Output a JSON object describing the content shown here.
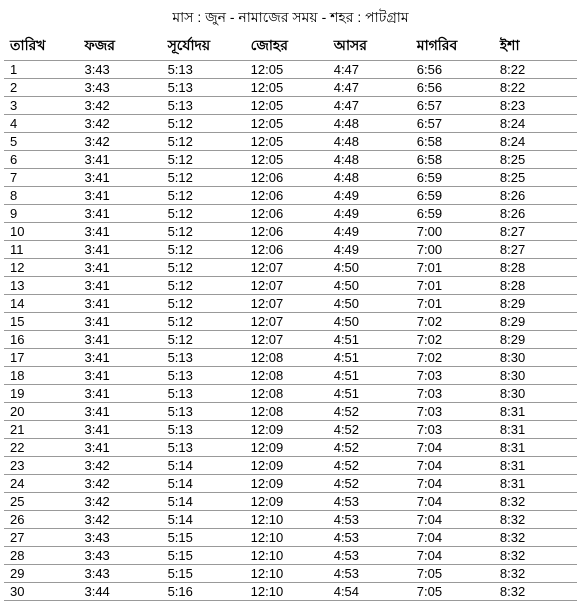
{
  "title": "মাস : জুন - নামাজের সময় - শহর : পাটগ্রাম",
  "headers": {
    "date": "তারিখ",
    "fajr": "ফজর",
    "sunrise": "সূর্যোদয়",
    "dhuhr": "জোহর",
    "asr": "আসর",
    "maghrib": "মাগরিব",
    "isha": "ইশা"
  },
  "table": {
    "columns": [
      "date",
      "fajr",
      "sunrise",
      "dhuhr",
      "asr",
      "maghrib",
      "isha"
    ],
    "rows": [
      [
        "1",
        "3:43",
        "5:13",
        "12:05",
        "4:47",
        "6:56",
        "8:22"
      ],
      [
        "2",
        "3:43",
        "5:13",
        "12:05",
        "4:47",
        "6:56",
        "8:22"
      ],
      [
        "3",
        "3:42",
        "5:13",
        "12:05",
        "4:47",
        "6:57",
        "8:23"
      ],
      [
        "4",
        "3:42",
        "5:12",
        "12:05",
        "4:48",
        "6:57",
        "8:24"
      ],
      [
        "5",
        "3:42",
        "5:12",
        "12:05",
        "4:48",
        "6:58",
        "8:24"
      ],
      [
        "6",
        "3:41",
        "5:12",
        "12:05",
        "4:48",
        "6:58",
        "8:25"
      ],
      [
        "7",
        "3:41",
        "5:12",
        "12:06",
        "4:48",
        "6:59",
        "8:25"
      ],
      [
        "8",
        "3:41",
        "5:12",
        "12:06",
        "4:49",
        "6:59",
        "8:26"
      ],
      [
        "9",
        "3:41",
        "5:12",
        "12:06",
        "4:49",
        "6:59",
        "8:26"
      ],
      [
        "10",
        "3:41",
        "5:12",
        "12:06",
        "4:49",
        "7:00",
        "8:27"
      ],
      [
        "11",
        "3:41",
        "5:12",
        "12:06",
        "4:49",
        "7:00",
        "8:27"
      ],
      [
        "12",
        "3:41",
        "5:12",
        "12:07",
        "4:50",
        "7:01",
        "8:28"
      ],
      [
        "13",
        "3:41",
        "5:12",
        "12:07",
        "4:50",
        "7:01",
        "8:28"
      ],
      [
        "14",
        "3:41",
        "5:12",
        "12:07",
        "4:50",
        "7:01",
        "8:29"
      ],
      [
        "15",
        "3:41",
        "5:12",
        "12:07",
        "4:50",
        "7:02",
        "8:29"
      ],
      [
        "16",
        "3:41",
        "5:12",
        "12:07",
        "4:51",
        "7:02",
        "8:29"
      ],
      [
        "17",
        "3:41",
        "5:13",
        "12:08",
        "4:51",
        "7:02",
        "8:30"
      ],
      [
        "18",
        "3:41",
        "5:13",
        "12:08",
        "4:51",
        "7:03",
        "8:30"
      ],
      [
        "19",
        "3:41",
        "5:13",
        "12:08",
        "4:51",
        "7:03",
        "8:30"
      ],
      [
        "20",
        "3:41",
        "5:13",
        "12:08",
        "4:52",
        "7:03",
        "8:31"
      ],
      [
        "21",
        "3:41",
        "5:13",
        "12:09",
        "4:52",
        "7:03",
        "8:31"
      ],
      [
        "22",
        "3:41",
        "5:13",
        "12:09",
        "4:52",
        "7:04",
        "8:31"
      ],
      [
        "23",
        "3:42",
        "5:14",
        "12:09",
        "4:52",
        "7:04",
        "8:31"
      ],
      [
        "24",
        "3:42",
        "5:14",
        "12:09",
        "4:52",
        "7:04",
        "8:31"
      ],
      [
        "25",
        "3:42",
        "5:14",
        "12:09",
        "4:53",
        "7:04",
        "8:32"
      ],
      [
        "26",
        "3:42",
        "5:14",
        "12:10",
        "4:53",
        "7:04",
        "8:32"
      ],
      [
        "27",
        "3:43",
        "5:15",
        "12:10",
        "4:53",
        "7:04",
        "8:32"
      ],
      [
        "28",
        "3:43",
        "5:15",
        "12:10",
        "4:53",
        "7:04",
        "8:32"
      ],
      [
        "29",
        "3:43",
        "5:15",
        "12:10",
        "4:53",
        "7:05",
        "8:32"
      ],
      [
        "30",
        "3:44",
        "5:16",
        "12:10",
        "4:54",
        "7:05",
        "8:32"
      ]
    ]
  }
}
